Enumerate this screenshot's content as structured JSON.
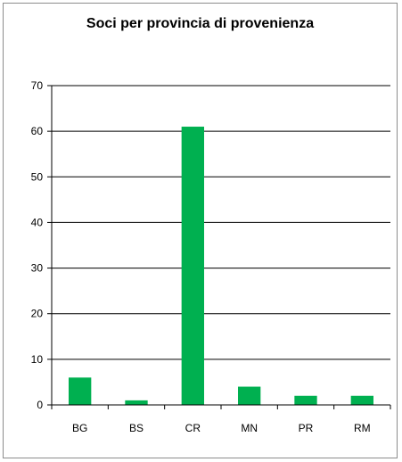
{
  "chart_data": {
    "type": "bar",
    "title": "Soci per provincia di provenienza",
    "categories": [
      "BG",
      "BS",
      "CR",
      "MN",
      "PR",
      "RM"
    ],
    "values": [
      6,
      1,
      61,
      4,
      2,
      2
    ],
    "ylim": [
      0,
      70
    ],
    "yticks": [
      0,
      10,
      20,
      30,
      40,
      50,
      60,
      70
    ],
    "grid": true,
    "legend": "none",
    "bar_color": "#00b050",
    "xlabel": "",
    "ylabel": ""
  }
}
